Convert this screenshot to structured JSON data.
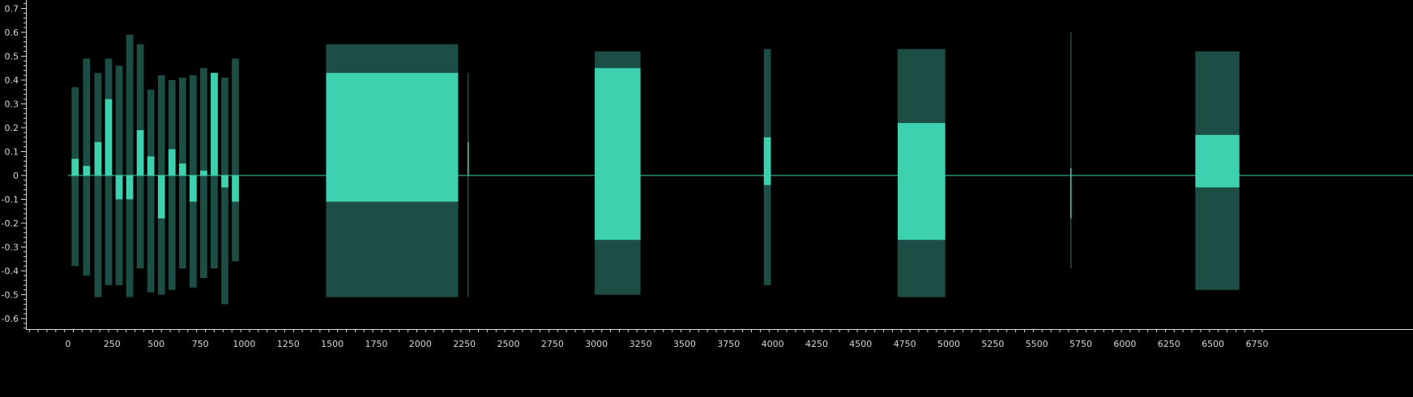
{
  "chart_data": {
    "type": "area",
    "title": "",
    "xlabel": "",
    "ylabel": "",
    "xlim": [
      -220,
      6790
    ],
    "ylim": [
      -0.64,
      0.73
    ],
    "grid": false,
    "legend": "none",
    "x_ticks": [
      0,
      250,
      500,
      750,
      1000,
      1250,
      1500,
      1750,
      2000,
      2250,
      2500,
      2750,
      3000,
      3250,
      3500,
      3750,
      4000,
      4250,
      4500,
      4750,
      5000,
      5250,
      5500,
      5750,
      6000,
      6250,
      6500,
      6750
    ],
    "y_ticks": [
      0.7,
      0.6,
      0.5,
      0.4,
      0.3,
      0.2,
      0.1,
      0,
      -0.1,
      -0.2,
      -0.3,
      -0.4,
      -0.5,
      -0.6
    ],
    "y_tick_labels": [
      "0.7",
      "0.6",
      "0.5",
      "0.4",
      "0.3",
      "0.2",
      "0.1",
      "0",
      "-0.1",
      "-0.2",
      "-0.3",
      "-0.4",
      "-0.5",
      "-0.6"
    ],
    "colors": {
      "background": "#000000",
      "envelope": "#1c4e45",
      "signal": "#3dd1b0",
      "axis": "#d6d6d6"
    },
    "series": [
      {
        "kind": "envelope",
        "segments": [
          {
            "x0": 20,
            "x1": 60,
            "max": 0.37,
            "min": -0.38
          },
          {
            "x0": 85,
            "x1": 125,
            "max": 0.49,
            "min": -0.42
          },
          {
            "x0": 150,
            "x1": 190,
            "max": 0.43,
            "min": -0.51
          },
          {
            "x0": 210,
            "x1": 250,
            "max": 0.49,
            "min": -0.46
          },
          {
            "x0": 270,
            "x1": 310,
            "max": 0.46,
            "min": -0.46
          },
          {
            "x0": 330,
            "x1": 370,
            "max": 0.59,
            "min": -0.51
          },
          {
            "x0": 390,
            "x1": 430,
            "max": 0.55,
            "min": -0.39
          },
          {
            "x0": 450,
            "x1": 490,
            "max": 0.36,
            "min": -0.49
          },
          {
            "x0": 510,
            "x1": 550,
            "max": 0.42,
            "min": -0.5
          },
          {
            "x0": 570,
            "x1": 610,
            "max": 0.4,
            "min": -0.48
          },
          {
            "x0": 630,
            "x1": 670,
            "max": 0.41,
            "min": -0.39
          },
          {
            "x0": 690,
            "x1": 730,
            "max": 0.42,
            "min": -0.47
          },
          {
            "x0": 750,
            "x1": 790,
            "max": 0.45,
            "min": -0.43
          },
          {
            "x0": 810,
            "x1": 850,
            "max": 0.43,
            "min": -0.39
          },
          {
            "x0": 870,
            "x1": 910,
            "max": 0.41,
            "min": -0.54
          },
          {
            "x0": 930,
            "x1": 970,
            "max": 0.49,
            "min": -0.36
          },
          {
            "x0": 1465,
            "x1": 2215,
            "max": 0.55,
            "min": -0.51
          },
          {
            "x0": 2268,
            "x1": 2275,
            "max": 0.43,
            "min": -0.51
          },
          {
            "x0": 2990,
            "x1": 3250,
            "max": 0.52,
            "min": -0.5
          },
          {
            "x0": 3950,
            "x1": 3990,
            "max": 0.53,
            "min": -0.46
          },
          {
            "x0": 4710,
            "x1": 4980,
            "max": 0.53,
            "min": -0.51
          },
          {
            "x0": 5690,
            "x1": 5695,
            "max": 0.6,
            "min": -0.39
          },
          {
            "x0": 6400,
            "x1": 6650,
            "max": 0.52,
            "min": -0.48
          }
        ]
      },
      {
        "kind": "signal",
        "segments": [
          {
            "x0": 20,
            "x1": 60,
            "max": 0.07,
            "min": 0
          },
          {
            "x0": 85,
            "x1": 125,
            "max": 0.04,
            "min": 0
          },
          {
            "x0": 150,
            "x1": 190,
            "max": 0.14,
            "min": 0
          },
          {
            "x0": 210,
            "x1": 250,
            "max": 0.32,
            "min": 0
          },
          {
            "x0": 270,
            "x1": 310,
            "max": 0,
            "min": -0.1
          },
          {
            "x0": 330,
            "x1": 370,
            "max": 0,
            "min": -0.1
          },
          {
            "x0": 390,
            "x1": 430,
            "max": 0.19,
            "min": 0
          },
          {
            "x0": 450,
            "x1": 490,
            "max": 0.08,
            "min": 0
          },
          {
            "x0": 510,
            "x1": 550,
            "max": 0,
            "min": -0.18
          },
          {
            "x0": 570,
            "x1": 610,
            "max": 0.11,
            "min": 0
          },
          {
            "x0": 630,
            "x1": 670,
            "max": 0.05,
            "min": 0
          },
          {
            "x0": 690,
            "x1": 730,
            "max": 0,
            "min": -0.11
          },
          {
            "x0": 750,
            "x1": 790,
            "max": 0.02,
            "min": 0
          },
          {
            "x0": 810,
            "x1": 850,
            "max": 0.43,
            "min": 0
          },
          {
            "x0": 870,
            "x1": 910,
            "max": 0,
            "min": -0.05
          },
          {
            "x0": 930,
            "x1": 970,
            "max": 0,
            "min": -0.11
          },
          {
            "x0": 1465,
            "x1": 2215,
            "max": 0.43,
            "min": -0.11
          },
          {
            "x0": 2268,
            "x1": 2275,
            "max": 0.14,
            "min": 0
          },
          {
            "x0": 2990,
            "x1": 3250,
            "max": 0.45,
            "min": -0.27
          },
          {
            "x0": 3950,
            "x1": 3990,
            "max": 0.16,
            "min": -0.04
          },
          {
            "x0": 4710,
            "x1": 4980,
            "max": 0.22,
            "min": -0.27
          },
          {
            "x0": 5690,
            "x1": 5695,
            "max": 0.03,
            "min": -0.18
          },
          {
            "x0": 6400,
            "x1": 6650,
            "max": 0.17,
            "min": -0.05
          }
        ]
      }
    ],
    "baseline": {
      "y": 0,
      "x0": 0,
      "x1": 6790
    }
  }
}
